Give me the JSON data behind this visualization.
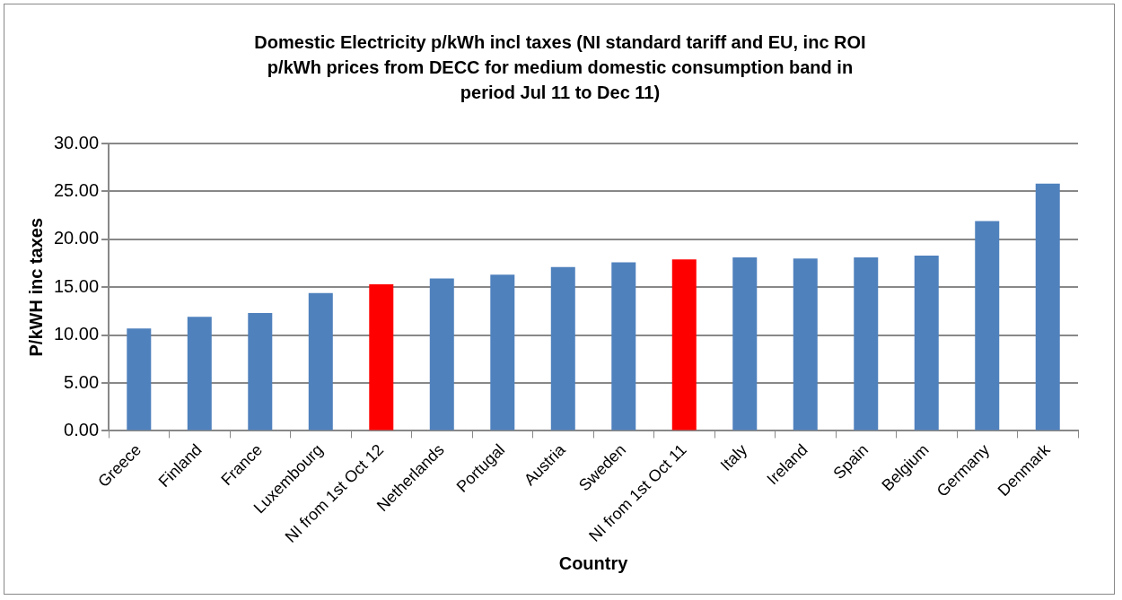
{
  "chart_data": {
    "type": "bar",
    "title": "Domestic Electricity p/kWh incl taxes (NI standard tariff and EU, inc ROI p/kWh prices from DECC for medium domestic consumption band in period Jul 11 to Dec 11)",
    "xlabel": "Country",
    "ylabel": "P/kWH inc taxes",
    "categories": [
      "Greece",
      "Finland",
      "France",
      "Luxembourg",
      "NI from 1st Oct 12",
      "Netherlands",
      "Portugal",
      "Austria",
      "Sweden",
      "NI from 1st Oct 11",
      "Italy",
      "Ireland",
      "Spain",
      "Belgium",
      "Germany",
      "Denmark"
    ],
    "values": [
      10.7,
      11.9,
      12.3,
      14.4,
      15.3,
      15.9,
      16.3,
      17.1,
      17.6,
      17.9,
      18.1,
      18.0,
      18.1,
      18.3,
      21.9,
      25.8
    ],
    "colors": [
      "#4f81bd",
      "#4f81bd",
      "#4f81bd",
      "#4f81bd",
      "#ff0000",
      "#4f81bd",
      "#4f81bd",
      "#4f81bd",
      "#4f81bd",
      "#ff0000",
      "#4f81bd",
      "#4f81bd",
      "#4f81bd",
      "#4f81bd",
      "#4f81bd",
      "#4f81bd"
    ],
    "ylim": [
      0,
      30
    ],
    "yticks": [
      {
        "value": 0,
        "label": "0.00"
      },
      {
        "value": 5,
        "label": "5.00"
      },
      {
        "value": 10,
        "label": "10.00"
      },
      {
        "value": 15,
        "label": "15.00"
      },
      {
        "value": 20,
        "label": "20.00"
      },
      {
        "value": 25,
        "label": "25.00"
      },
      {
        "value": 30,
        "label": "30.00"
      }
    ],
    "grid": "y",
    "legend": false
  }
}
